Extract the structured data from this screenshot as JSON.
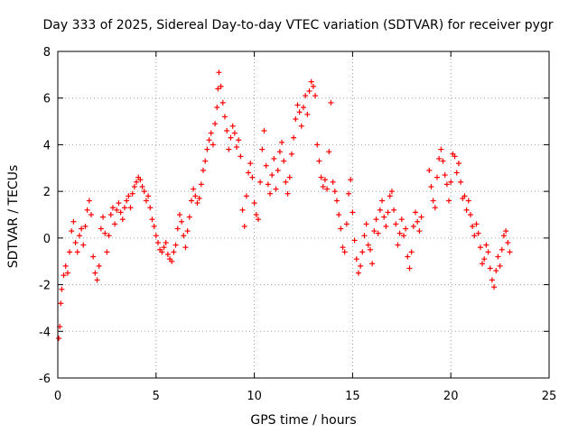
{
  "chart_data": {
    "type": "scatter",
    "title": "Day 333 of 2025, Sidereal Day-to-day VTEC variation (SDTVAR) for receiver pygr",
    "xlabel": "GPS time / hours",
    "ylabel": "SDTVAR / TECUs",
    "xlim": [
      0,
      25
    ],
    "ylim": [
      -6,
      8
    ],
    "xticks": [
      "0",
      "5",
      "10",
      "15",
      "20",
      "25"
    ],
    "yticks": [
      "-6",
      "-4",
      "-2",
      "0",
      "2",
      "4",
      "6",
      "8"
    ],
    "grid": true,
    "marker": "+",
    "color": "#ff0000",
    "series": [
      {
        "name": "SDTVAR",
        "points": [
          [
            0.05,
            -4.3
          ],
          [
            0.1,
            -3.8
          ],
          [
            0.15,
            -2.8
          ],
          [
            0.2,
            -2.2
          ],
          [
            0.3,
            -1.6
          ],
          [
            0.4,
            -1.2
          ],
          [
            0.5,
            -1.5
          ],
          [
            0.6,
            -0.6
          ],
          [
            0.7,
            0.3
          ],
          [
            0.8,
            0.7
          ],
          [
            0.9,
            -0.2
          ],
          [
            1.0,
            -0.6
          ],
          [
            1.1,
            0.1
          ],
          [
            1.2,
            0.4
          ],
          [
            1.3,
            -0.3
          ],
          [
            1.4,
            0.5
          ],
          [
            1.5,
            1.2
          ],
          [
            1.6,
            1.6
          ],
          [
            1.7,
            1.0
          ],
          [
            1.8,
            -0.8
          ],
          [
            1.9,
            -1.5
          ],
          [
            2.0,
            -1.8
          ],
          [
            2.1,
            -1.2
          ],
          [
            2.2,
            0.4
          ],
          [
            2.3,
            0.9
          ],
          [
            2.4,
            0.2
          ],
          [
            2.5,
            -0.6
          ],
          [
            2.6,
            0.1
          ],
          [
            2.7,
            1.0
          ],
          [
            2.8,
            1.3
          ],
          [
            2.9,
            0.6
          ],
          [
            3.0,
            1.2
          ],
          [
            3.1,
            1.5
          ],
          [
            3.2,
            1.1
          ],
          [
            3.3,
            0.8
          ],
          [
            3.4,
            1.3
          ],
          [
            3.5,
            1.6
          ],
          [
            3.6,
            1.8
          ],
          [
            3.7,
            1.3
          ],
          [
            3.8,
            1.9
          ],
          [
            3.9,
            2.2
          ],
          [
            4.0,
            2.4
          ],
          [
            4.1,
            2.6
          ],
          [
            4.2,
            2.5
          ],
          [
            4.3,
            2.2
          ],
          [
            4.4,
            2.0
          ],
          [
            4.5,
            1.6
          ],
          [
            4.6,
            1.8
          ],
          [
            4.7,
            1.3
          ],
          [
            4.8,
            0.8
          ],
          [
            4.9,
            0.5
          ],
          [
            5.0,
            0.1
          ],
          [
            5.1,
            -0.2
          ],
          [
            5.2,
            -0.5
          ],
          [
            5.3,
            -0.6
          ],
          [
            5.4,
            -0.4
          ],
          [
            5.5,
            -0.2
          ],
          [
            5.6,
            -0.7
          ],
          [
            5.7,
            -0.9
          ],
          [
            5.8,
            -1.0
          ],
          [
            5.9,
            -0.6
          ],
          [
            6.0,
            -0.3
          ],
          [
            6.1,
            0.4
          ],
          [
            6.2,
            1.0
          ],
          [
            6.3,
            0.7
          ],
          [
            6.4,
            0.1
          ],
          [
            6.5,
            -0.4
          ],
          [
            6.6,
            0.3
          ],
          [
            6.7,
            0.9
          ],
          [
            6.8,
            1.6
          ],
          [
            6.9,
            2.1
          ],
          [
            7.0,
            1.8
          ],
          [
            7.1,
            1.5
          ],
          [
            7.2,
            1.7
          ],
          [
            7.3,
            2.3
          ],
          [
            7.4,
            2.9
          ],
          [
            7.5,
            3.3
          ],
          [
            7.6,
            3.8
          ],
          [
            7.7,
            4.2
          ],
          [
            7.8,
            4.5
          ],
          [
            7.9,
            4.0
          ],
          [
            8.0,
            4.9
          ],
          [
            8.1,
            5.6
          ],
          [
            8.15,
            6.4
          ],
          [
            8.2,
            7.1
          ],
          [
            8.3,
            6.5
          ],
          [
            8.4,
            5.8
          ],
          [
            8.5,
            5.2
          ],
          [
            8.6,
            4.6
          ],
          [
            8.7,
            3.8
          ],
          [
            8.8,
            4.3
          ],
          [
            8.9,
            4.8
          ],
          [
            9.0,
            4.5
          ],
          [
            9.1,
            3.9
          ],
          [
            9.2,
            4.2
          ],
          [
            9.3,
            3.5
          ],
          [
            9.4,
            1.2
          ],
          [
            9.5,
            0.5
          ],
          [
            9.6,
            1.8
          ],
          [
            9.7,
            2.8
          ],
          [
            9.8,
            3.2
          ],
          [
            9.9,
            2.6
          ],
          [
            10.0,
            1.5
          ],
          [
            10.1,
            1.0
          ],
          [
            10.2,
            0.8
          ],
          [
            10.3,
            2.4
          ],
          [
            10.4,
            3.8
          ],
          [
            10.5,
            4.6
          ],
          [
            10.6,
            3.1
          ],
          [
            10.7,
            2.3
          ],
          [
            10.8,
            1.9
          ],
          [
            10.9,
            2.7
          ],
          [
            11.0,
            3.4
          ],
          [
            11.1,
            2.1
          ],
          [
            11.2,
            2.9
          ],
          [
            11.3,
            3.7
          ],
          [
            11.4,
            4.1
          ],
          [
            11.5,
            3.3
          ],
          [
            11.6,
            2.4
          ],
          [
            11.7,
            1.9
          ],
          [
            11.8,
            2.6
          ],
          [
            11.9,
            3.6
          ],
          [
            12.0,
            4.3
          ],
          [
            12.1,
            5.1
          ],
          [
            12.2,
            5.7
          ],
          [
            12.3,
            5.4
          ],
          [
            12.4,
            4.8
          ],
          [
            12.5,
            5.6
          ],
          [
            12.6,
            6.1
          ],
          [
            12.7,
            5.3
          ],
          [
            12.8,
            6.3
          ],
          [
            12.9,
            6.7
          ],
          [
            13.0,
            6.5
          ],
          [
            13.1,
            6.1
          ],
          [
            13.2,
            4.0
          ],
          [
            13.3,
            3.3
          ],
          [
            13.4,
            2.6
          ],
          [
            13.5,
            2.2
          ],
          [
            13.6,
            2.5
          ],
          [
            13.7,
            2.1
          ],
          [
            13.8,
            3.7
          ],
          [
            13.9,
            5.8
          ],
          [
            14.0,
            2.4
          ],
          [
            14.1,
            2.0
          ],
          [
            14.2,
            1.6
          ],
          [
            14.3,
            1.0
          ],
          [
            14.4,
            0.4
          ],
          [
            14.5,
            -0.4
          ],
          [
            14.6,
            -0.6
          ],
          [
            14.7,
            0.6
          ],
          [
            14.8,
            1.9
          ],
          [
            14.9,
            2.5
          ],
          [
            15.0,
            1.1
          ],
          [
            15.1,
            -0.1
          ],
          [
            15.2,
            -0.9
          ],
          [
            15.3,
            -1.5
          ],
          [
            15.4,
            -1.2
          ],
          [
            15.5,
            -0.6
          ],
          [
            15.6,
            0.1
          ],
          [
            15.7,
            0.6
          ],
          [
            15.8,
            -0.3
          ],
          [
            15.9,
            -0.5
          ],
          [
            16.0,
            -1.1
          ],
          [
            16.1,
            0.3
          ],
          [
            16.2,
            0.8
          ],
          [
            16.3,
            0.2
          ],
          [
            16.4,
            1.2
          ],
          [
            16.5,
            1.6
          ],
          [
            16.6,
            0.9
          ],
          [
            16.7,
            0.5
          ],
          [
            16.8,
            1.1
          ],
          [
            16.9,
            1.8
          ],
          [
            17.0,
            2.0
          ],
          [
            17.1,
            1.2
          ],
          [
            17.2,
            0.6
          ],
          [
            17.3,
            -0.3
          ],
          [
            17.4,
            0.2
          ],
          [
            17.5,
            0.8
          ],
          [
            17.6,
            0.1
          ],
          [
            17.7,
            0.4
          ],
          [
            17.8,
            -0.8
          ],
          [
            17.9,
            -1.3
          ],
          [
            18.0,
            -0.6
          ],
          [
            18.1,
            0.5
          ],
          [
            18.2,
            1.1
          ],
          [
            18.3,
            0.7
          ],
          [
            18.4,
            0.3
          ],
          [
            18.5,
            0.9
          ],
          [
            18.9,
            2.9
          ],
          [
            19.0,
            2.2
          ],
          [
            19.1,
            1.6
          ],
          [
            19.2,
            1.3
          ],
          [
            19.3,
            2.6
          ],
          [
            19.4,
            3.4
          ],
          [
            19.5,
            3.8
          ],
          [
            19.6,
            3.3
          ],
          [
            19.7,
            2.7
          ],
          [
            19.8,
            2.3
          ],
          [
            19.9,
            1.6
          ],
          [
            20.0,
            2.4
          ],
          [
            20.1,
            3.6
          ],
          [
            20.2,
            3.5
          ],
          [
            20.3,
            2.8
          ],
          [
            20.4,
            3.2
          ],
          [
            20.5,
            2.4
          ],
          [
            20.6,
            1.7
          ],
          [
            20.7,
            1.8
          ],
          [
            20.8,
            1.2
          ],
          [
            20.9,
            1.6
          ],
          [
            21.0,
            1.0
          ],
          [
            21.1,
            0.5
          ],
          [
            21.2,
            0.1
          ],
          [
            21.3,
            0.6
          ],
          [
            21.4,
            0.2
          ],
          [
            21.5,
            -0.4
          ],
          [
            21.6,
            -1.1
          ],
          [
            21.7,
            -0.9
          ],
          [
            21.8,
            -0.3
          ],
          [
            21.9,
            -0.6
          ],
          [
            22.0,
            -1.3
          ],
          [
            22.1,
            -1.8
          ],
          [
            22.2,
            -2.1
          ],
          [
            22.3,
            -1.4
          ],
          [
            22.4,
            -0.8
          ],
          [
            22.5,
            -1.2
          ],
          [
            22.6,
            -0.5
          ],
          [
            22.7,
            0.1
          ],
          [
            22.8,
            0.3
          ],
          [
            22.9,
            -0.2
          ],
          [
            23.0,
            -0.6
          ]
        ]
      }
    ]
  }
}
